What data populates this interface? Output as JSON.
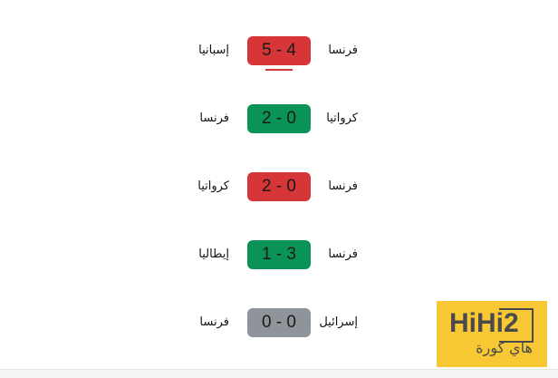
{
  "matches": [
    {
      "home": "فرنسا",
      "score": "5 - 4",
      "away": "إسبانيا",
      "result": "loss",
      "color": "#d63638"
    },
    {
      "home": "كرواتيا",
      "score": "2 - 0",
      "away": "فرنسا",
      "result": "win",
      "color": "#0a9356"
    },
    {
      "home": "فرنسا",
      "score": "2 - 0",
      "away": "كرواتيا",
      "result": "loss",
      "color": "#d63638"
    },
    {
      "home": "فرنسا",
      "score": "1 - 3",
      "away": "إيطاليا",
      "result": "win",
      "color": "#0a9356"
    },
    {
      "home": "إسرائيل",
      "score": "0 - 0",
      "away": "فرنسا",
      "result": "draw",
      "color": "#8e9499"
    }
  ],
  "logo": {
    "en": "HiHi2",
    "ar": "هاي كورة",
    "color": "#f7c833"
  }
}
